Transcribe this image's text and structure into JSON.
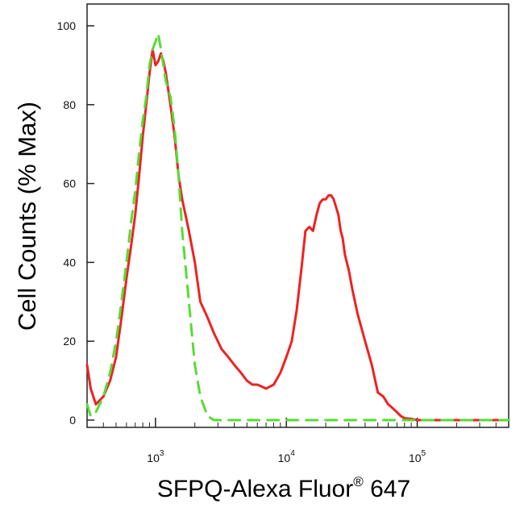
{
  "chart_data": {
    "type": "line",
    "title": "",
    "xlabel": "SFPQ-Alexa Fluor",
    "xlabel_superscript": "®",
    "xlabel_suffix": " 647",
    "ylabel": "Cell Counts (% Max)",
    "x_scale": "log",
    "xlim": [
      300,
      500000
    ],
    "ylim": [
      0,
      100
    ],
    "y_ticks": [
      0,
      20,
      40,
      60,
      80,
      100
    ],
    "x_major_ticks": [
      {
        "value": 1000,
        "base": "10",
        "exp": "3"
      },
      {
        "value": 10000,
        "base": "10",
        "exp": "4"
      },
      {
        "value": 100000,
        "base": "10",
        "exp": "5"
      }
    ],
    "grid": false,
    "legend": "none",
    "series": [
      {
        "color": "#ee2222",
        "dash": "solid",
        "x": [
          300,
          320,
          350,
          400,
          450,
          500,
          550,
          600,
          650,
          700,
          750,
          800,
          850,
          900,
          950,
          1000,
          1050,
          1100,
          1150,
          1200,
          1300,
          1400,
          1500,
          1600,
          1800,
          2000,
          2200,
          2500,
          2800,
          3200,
          3600,
          4000,
          4500,
          5000,
          5500,
          6000,
          7000,
          8000,
          9000,
          10000,
          11000,
          12000,
          13000,
          14000,
          15000,
          16000,
          17000,
          18000,
          19000,
          20000,
          21000,
          22000,
          23000,
          24000,
          25000,
          26000,
          27000,
          28000,
          30000,
          32000,
          35000,
          40000,
          45000,
          50000,
          55000,
          60000,
          65000,
          70000,
          75000,
          80000,
          90000,
          100000,
          120000,
          150000,
          200000,
          300000,
          500000
        ],
        "y": [
          14,
          8,
          4,
          6,
          10,
          16,
          26,
          36,
          44,
          52,
          62,
          72,
          80,
          88,
          94,
          90,
          91,
          93,
          91,
          88,
          80,
          72,
          62,
          56,
          48,
          40,
          30,
          26,
          22,
          18,
          16,
          14,
          12,
          10,
          9,
          9,
          8,
          9,
          12,
          16,
          20,
          28,
          38,
          48,
          49,
          48,
          52,
          55,
          56,
          56,
          57,
          57,
          56,
          54,
          52,
          48,
          46,
          42,
          38,
          33,
          27,
          20,
          14,
          7,
          6,
          4,
          3,
          2,
          1,
          0.5,
          0.3,
          0,
          0,
          0,
          0,
          0,
          0
        ]
      },
      {
        "color": "#55dd33",
        "dash": "dashed",
        "x": [
          300,
          320,
          350,
          400,
          450,
          500,
          550,
          600,
          650,
          700,
          750,
          800,
          850,
          900,
          950,
          1000,
          1050,
          1100,
          1150,
          1200,
          1300,
          1400,
          1500,
          1600,
          1800,
          2000,
          2200,
          2500,
          2800,
          3200,
          3600,
          4000,
          5000,
          6000,
          8000,
          10000,
          20000,
          50000,
          100000,
          200000,
          500000
        ],
        "y": [
          4,
          1,
          2,
          6,
          12,
          20,
          30,
          40,
          50,
          58,
          68,
          76,
          82,
          90,
          94,
          96,
          98,
          94,
          90,
          86,
          82,
          74,
          62,
          48,
          30,
          14,
          6,
          1,
          0,
          0,
          0,
          0,
          0,
          0,
          0,
          0,
          0,
          0,
          0,
          0,
          0
        ]
      }
    ]
  }
}
